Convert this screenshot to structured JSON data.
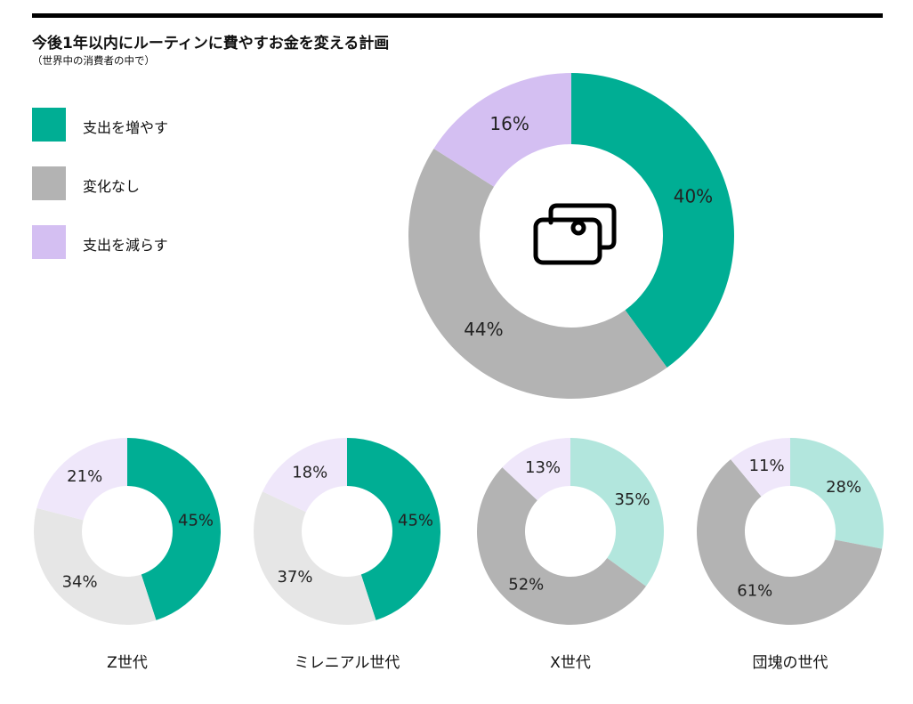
{
  "header": {
    "title": "今後1年以内にルーティンに費やすお金を変える計画",
    "subtitle": "（世界中の消費者の中で）"
  },
  "legend": [
    {
      "label": "支出を増やす",
      "color": "#00ae94"
    },
    {
      "label": "変化なし",
      "color": "#b3b3b3"
    },
    {
      "label": "支出を減らす",
      "color": "#d4bff2"
    }
  ],
  "center_icon": "money-icon",
  "chart_data": [
    {
      "type": "pie",
      "name": "",
      "categories": [
        "支出を増やす",
        "変化なし",
        "支出を減らす"
      ],
      "values": [
        40,
        44,
        16
      ],
      "labels": [
        "40%",
        "44%",
        "16%"
      ],
      "colors": [
        "#00ae94",
        "#b3b3b3",
        "#d4bff2"
      ]
    },
    {
      "type": "pie",
      "name": "Z世代",
      "categories": [
        "支出を増やす",
        "変化なし",
        "支出を減らす"
      ],
      "values": [
        45,
        34,
        21
      ],
      "labels": [
        "45%",
        "34%",
        "21%"
      ],
      "colors": [
        "#00ae94",
        "#e6e6e6",
        "#efe7fa"
      ]
    },
    {
      "type": "pie",
      "name": "ミレニアル世代",
      "categories": [
        "支出を増やす",
        "変化なし",
        "支出を減らす"
      ],
      "values": [
        45,
        37,
        18
      ],
      "labels": [
        "45%",
        "37%",
        "18%"
      ],
      "colors": [
        "#00ae94",
        "#e6e6e6",
        "#efe7fa"
      ]
    },
    {
      "type": "pie",
      "name": "X世代",
      "categories": [
        "支出を増やす",
        "変化なし",
        "支出を減らす"
      ],
      "values": [
        35,
        52,
        13
      ],
      "labels": [
        "35%",
        "52%",
        "13%"
      ],
      "colors": [
        "#b2e6dd",
        "#b3b3b3",
        "#efe7fa"
      ]
    },
    {
      "type": "pie",
      "name": "団塊の世代",
      "categories": [
        "支出を増やす",
        "変化なし",
        "支出を減らす"
      ],
      "values": [
        28,
        61,
        11
      ],
      "labels": [
        "28%",
        "61%",
        "11%"
      ],
      "colors": [
        "#b2e6dd",
        "#b3b3b3",
        "#efe7fa"
      ]
    }
  ]
}
